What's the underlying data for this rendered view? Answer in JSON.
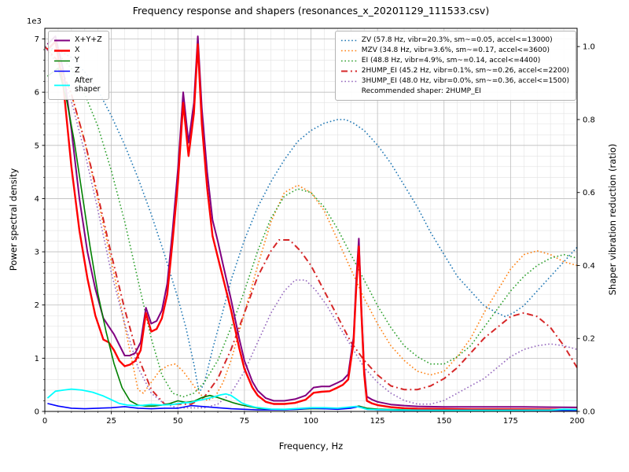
{
  "title": "Frequency response and shapers (resonances_x_20201129_111533.csv)",
  "axes": {
    "xlabel": "Frequency, Hz",
    "ylabel_left": "Power spectral density",
    "ylabel_right": "Shaper vibration reduction (ratio)",
    "offset_text": "1e3"
  },
  "legend_psd": {
    "entries": [
      {
        "label": "X+Y+Z",
        "color": "#800080",
        "style": "solid",
        "width": 2
      },
      {
        "label": "X",
        "color": "#ff0000",
        "style": "solid",
        "width": 2.4
      },
      {
        "label": "Y",
        "color": "#008000",
        "style": "solid",
        "width": 1.6
      },
      {
        "label": "Z",
        "color": "#0000ff",
        "style": "solid",
        "width": 1.6
      },
      {
        "label": "After\nshaper",
        "color": "#00ffff",
        "style": "solid",
        "width": 1.8
      }
    ]
  },
  "legend_shapers": {
    "entries": [
      {
        "label": "ZV (57.8 Hz, vibr=20.3%, sm~=0.05, accel<=13000)",
        "color": "#1f77b4",
        "style": "dotted",
        "width": 1.6
      },
      {
        "label": "MZV (34.8 Hz, vibr=3.6%, sm~=0.17, accel<=3600)",
        "color": "#ff7f0e",
        "style": "dotted",
        "width": 1.6
      },
      {
        "label": "EI (48.8 Hz, vibr=4.9%, sm~=0.14, accel<=4400)",
        "color": "#2ca02c",
        "style": "dotted",
        "width": 1.6
      },
      {
        "label": "2HUMP_EI (45.2 Hz, vibr=0.1%, sm~=0.26, accel<=2200)",
        "color": "#d62728",
        "style": "dashdot",
        "width": 2
      },
      {
        "label": "3HUMP_EI (48.0 Hz, vibr=0.0%, sm~=0.36, accel<=1500)",
        "color": "#9467bd",
        "style": "dotted",
        "width": 1.6
      }
    ],
    "note": "Recommended shaper: 2HUMP_EI"
  },
  "chart_data": {
    "type": "line",
    "xlim": [
      0,
      200
    ],
    "ylim_left": [
      0,
      7200
    ],
    "ylim_right": [
      0,
      1.05
    ],
    "xticks": [
      0,
      25,
      50,
      75,
      100,
      125,
      150,
      175,
      200
    ],
    "yticks_left": {
      "values": [
        0,
        1000,
        2000,
        3000,
        4000,
        5000,
        6000,
        7000
      ],
      "labels": [
        "0",
        "1",
        "2",
        "3",
        "4",
        "5",
        "6",
        "7"
      ]
    },
    "yticks_right": {
      "values": [
        0,
        0.2,
        0.4,
        0.6,
        0.8,
        1.0
      ],
      "labels": [
        "0.0",
        "0.2",
        "0.4",
        "0.6",
        "0.8",
        "1.0"
      ]
    },
    "grid": "major+minor",
    "minor_x_step": 5,
    "minor_y_step": 200,
    "series": [
      {
        "name": "ZV",
        "axis": "right",
        "color": "#1f77b4",
        "style": "dotted",
        "width": 1.6,
        "x": [
          0,
          5,
          10,
          15,
          20,
          25,
          30,
          35,
          40,
          45,
          50,
          53,
          56,
          58,
          60,
          63,
          66,
          70,
          75,
          80,
          85,
          90,
          95,
          100,
          105,
          110,
          113,
          116,
          120,
          125,
          130,
          135,
          140,
          145,
          150,
          155,
          160,
          165,
          170,
          173,
          176,
          180,
          185,
          190,
          195,
          200
        ],
        "y": [
          1.0,
          0.99,
          0.97,
          0.93,
          0.88,
          0.81,
          0.73,
          0.64,
          0.54,
          0.43,
          0.31,
          0.23,
          0.13,
          0.05,
          0.08,
          0.17,
          0.25,
          0.36,
          0.47,
          0.56,
          0.63,
          0.69,
          0.74,
          0.77,
          0.79,
          0.8,
          0.8,
          0.79,
          0.77,
          0.73,
          0.68,
          0.62,
          0.56,
          0.49,
          0.43,
          0.37,
          0.33,
          0.29,
          0.27,
          0.26,
          0.27,
          0.29,
          0.33,
          0.37,
          0.41,
          0.45
        ]
      },
      {
        "name": "MZV",
        "axis": "right",
        "color": "#ff7f0e",
        "style": "dotted",
        "width": 1.6,
        "x": [
          0,
          5,
          10,
          15,
          20,
          25,
          28,
          31,
          33,
          35,
          37,
          40,
          43,
          46,
          49,
          52,
          55,
          58,
          61,
          64,
          67,
          70,
          75,
          80,
          85,
          90,
          95,
          100,
          105,
          110,
          115,
          120,
          125,
          130,
          135,
          140,
          145,
          150,
          155,
          160,
          165,
          170,
          175,
          180,
          185,
          190,
          195,
          200
        ],
        "y": [
          1.0,
          0.96,
          0.87,
          0.74,
          0.58,
          0.41,
          0.31,
          0.2,
          0.13,
          0.06,
          0.05,
          0.08,
          0.11,
          0.125,
          0.13,
          0.11,
          0.08,
          0.05,
          0.03,
          0.04,
          0.08,
          0.14,
          0.27,
          0.4,
          0.52,
          0.6,
          0.62,
          0.6,
          0.55,
          0.47,
          0.39,
          0.31,
          0.24,
          0.18,
          0.14,
          0.11,
          0.1,
          0.11,
          0.15,
          0.2,
          0.27,
          0.33,
          0.39,
          0.43,
          0.44,
          0.43,
          0.41,
          0.4
        ]
      },
      {
        "name": "EI",
        "axis": "right",
        "color": "#2ca02c",
        "style": "dotted",
        "width": 1.6,
        "x": [
          0,
          5,
          10,
          15,
          20,
          25,
          30,
          35,
          40,
          44,
          48,
          52,
          56,
          60,
          65,
          70,
          75,
          80,
          85,
          90,
          95,
          100,
          105,
          110,
          115,
          120,
          125,
          130,
          135,
          140,
          145,
          150,
          155,
          160,
          165,
          170,
          175,
          180,
          185,
          190,
          195,
          200
        ],
        "y": [
          1.0,
          0.98,
          0.94,
          0.87,
          0.78,
          0.66,
          0.52,
          0.36,
          0.2,
          0.1,
          0.05,
          0.04,
          0.05,
          0.08,
          0.14,
          0.23,
          0.33,
          0.44,
          0.53,
          0.59,
          0.61,
          0.6,
          0.56,
          0.5,
          0.43,
          0.36,
          0.29,
          0.23,
          0.18,
          0.15,
          0.13,
          0.13,
          0.15,
          0.18,
          0.23,
          0.28,
          0.33,
          0.37,
          0.4,
          0.42,
          0.43,
          0.42
        ]
      },
      {
        "name": "2HUMP_EI",
        "axis": "right",
        "color": "#d62728",
        "style": "dashdot",
        "width": 2,
        "x": [
          0,
          5,
          10,
          15,
          20,
          25,
          30,
          35,
          40,
          45,
          50,
          55,
          60,
          65,
          70,
          75,
          80,
          85,
          88,
          92,
          96,
          100,
          105,
          110,
          115,
          120,
          125,
          130,
          135,
          140,
          145,
          150,
          155,
          160,
          165,
          170,
          175,
          180,
          185,
          190,
          195,
          200
        ],
        "y": [
          1.0,
          0.96,
          0.87,
          0.74,
          0.59,
          0.43,
          0.28,
          0.15,
          0.06,
          0.02,
          0.02,
          0.02,
          0.04,
          0.09,
          0.17,
          0.27,
          0.37,
          0.44,
          0.47,
          0.47,
          0.44,
          0.4,
          0.33,
          0.26,
          0.19,
          0.14,
          0.1,
          0.07,
          0.06,
          0.06,
          0.07,
          0.09,
          0.12,
          0.16,
          0.2,
          0.23,
          0.26,
          0.27,
          0.26,
          0.23,
          0.18,
          0.12
        ]
      },
      {
        "name": "3HUMP_EI",
        "axis": "right",
        "color": "#9467bd",
        "style": "dotted",
        "width": 1.6,
        "x": [
          0,
          5,
          10,
          15,
          20,
          25,
          30,
          35,
          40,
          45,
          50,
          55,
          60,
          65,
          70,
          75,
          80,
          85,
          90,
          94,
          98,
          102,
          106,
          110,
          115,
          120,
          125,
          130,
          135,
          140,
          145,
          150,
          155,
          160,
          165,
          170,
          175,
          180,
          185,
          190,
          195,
          200
        ],
        "y": [
          1.0,
          0.95,
          0.85,
          0.71,
          0.55,
          0.38,
          0.24,
          0.12,
          0.05,
          0.02,
          0.01,
          0.01,
          0.01,
          0.02,
          0.05,
          0.11,
          0.19,
          0.27,
          0.33,
          0.36,
          0.36,
          0.33,
          0.29,
          0.24,
          0.18,
          0.12,
          0.08,
          0.05,
          0.03,
          0.02,
          0.02,
          0.03,
          0.05,
          0.07,
          0.09,
          0.12,
          0.15,
          0.17,
          0.18,
          0.185,
          0.18,
          0.17
        ]
      },
      {
        "name": "X+Y+Z",
        "axis": "left",
        "color": "#800080",
        "style": "solid",
        "width": 2,
        "x": [
          1,
          4,
          7,
          10,
          13,
          16,
          19,
          22,
          24,
          26,
          28,
          30,
          32,
          34,
          36,
          38,
          40,
          42,
          44,
          46,
          48,
          50,
          52,
          54,
          56,
          57.5,
          59,
          61,
          63,
          65,
          67,
          70,
          73,
          75,
          78,
          80,
          83,
          86,
          90,
          94,
          98,
          101,
          104,
          107,
          110,
          112,
          114,
          116,
          117,
          118,
          119,
          120,
          121,
          123,
          125,
          130,
          135,
          140,
          150,
          160,
          170,
          180,
          190,
          200
        ],
        "y": [
          6900,
          7050,
          6400,
          5300,
          4000,
          3000,
          2300,
          1750,
          1600,
          1450,
          1250,
          1050,
          1050,
          1100,
          1300,
          1950,
          1650,
          1700,
          1900,
          2400,
          3400,
          4550,
          6000,
          5050,
          5800,
          7050,
          5700,
          4500,
          3600,
          3200,
          2750,
          2100,
          1380,
          950,
          560,
          390,
          250,
          200,
          200,
          230,
          300,
          450,
          470,
          470,
          540,
          590,
          700,
          1400,
          2450,
          3250,
          1900,
          800,
          280,
          220,
          180,
          130,
          110,
          95,
          85,
          85,
          85,
          85,
          80,
          75
        ]
      },
      {
        "name": "X",
        "axis": "left",
        "color": "#ff0000",
        "style": "solid",
        "width": 2.4,
        "x": [
          1,
          4,
          7,
          10,
          13,
          16,
          19,
          22,
          24,
          26,
          28,
          30,
          32,
          34,
          36,
          38,
          40,
          42,
          44,
          46,
          48,
          50,
          52,
          54,
          56,
          57.5,
          59,
          61,
          63,
          65,
          67,
          70,
          73,
          75,
          78,
          80,
          83,
          86,
          90,
          94,
          98,
          101,
          104,
          107,
          110,
          112,
          114,
          116,
          117,
          118,
          119,
          120,
          121,
          123,
          125,
          130,
          135,
          140,
          150,
          160,
          170,
          180,
          190,
          200
        ],
        "y": [
          6800,
          6950,
          6100,
          4600,
          3400,
          2500,
          1800,
          1350,
          1300,
          1150,
          950,
          850,
          880,
          950,
          1150,
          1850,
          1500,
          1550,
          1750,
          2200,
          3200,
          4300,
          5800,
          4800,
          5600,
          6900,
          5400,
          4200,
          3300,
          2900,
          2500,
          1900,
          1200,
          800,
          450,
          300,
          180,
          140,
          140,
          160,
          220,
          350,
          370,
          380,
          450,
          500,
          600,
          1300,
          2300,
          3100,
          1800,
          700,
          200,
          150,
          120,
          80,
          60,
          50,
          45,
          40,
          40,
          40,
          35,
          30
        ]
      },
      {
        "name": "Y",
        "axis": "left",
        "color": "#008000",
        "style": "solid",
        "width": 1.6,
        "x": [
          1,
          5,
          8,
          11,
          14,
          17,
          20,
          23,
          26,
          29,
          32,
          35,
          38,
          41,
          44,
          47,
          50,
          53,
          56,
          59,
          62,
          65,
          68,
          71,
          74,
          77,
          80,
          85,
          90,
          95,
          100,
          105,
          110,
          115,
          118,
          121,
          125,
          130,
          140,
          150,
          160,
          170,
          180,
          190,
          200
        ],
        "y": [
          6300,
          6450,
          5900,
          5100,
          4100,
          3100,
          2200,
          1500,
          900,
          450,
          200,
          120,
          100,
          100,
          120,
          150,
          200,
          170,
          190,
          260,
          300,
          260,
          210,
          160,
          120,
          90,
          60,
          35,
          30,
          40,
          50,
          50,
          50,
          70,
          100,
          60,
          45,
          35,
          25,
          25,
          25,
          25,
          25,
          25,
          25
        ]
      },
      {
        "name": "Z",
        "axis": "left",
        "color": "#0000ff",
        "style": "solid",
        "width": 1.6,
        "x": [
          1,
          5,
          10,
          15,
          20,
          25,
          30,
          35,
          40,
          45,
          50,
          55,
          60,
          65,
          70,
          75,
          80,
          85,
          90,
          95,
          100,
          105,
          110,
          115,
          118,
          121,
          125,
          130,
          140,
          150,
          160,
          170,
          180,
          190,
          200
        ],
        "y": [
          150,
          100,
          60,
          50,
          60,
          70,
          90,
          60,
          50,
          60,
          60,
          110,
          90,
          70,
          50,
          40,
          30,
          30,
          30,
          40,
          60,
          50,
          40,
          60,
          90,
          40,
          30,
          25,
          20,
          20,
          20,
          20,
          20,
          20,
          20
        ]
      },
      {
        "name": "After shaper",
        "axis": "left",
        "color": "#00ffff",
        "style": "solid",
        "width": 1.8,
        "x": [
          1,
          4,
          7,
          10,
          14,
          18,
          22,
          25,
          28,
          31,
          34,
          37,
          40,
          44,
          48,
          52,
          55,
          58,
          61,
          64,
          66,
          68,
          70,
          72,
          74,
          76,
          79,
          82,
          85,
          90,
          95,
          100,
          105,
          110,
          114,
          117,
          119,
          121,
          124,
          128,
          132,
          140,
          150,
          160,
          170,
          180,
          190,
          195,
          200
        ],
        "y": [
          250,
          380,
          400,
          420,
          400,
          360,
          290,
          220,
          150,
          120,
          110,
          115,
          130,
          120,
          130,
          160,
          170,
          210,
          240,
          280,
          310,
          330,
          300,
          230,
          160,
          120,
          80,
          60,
          45,
          40,
          55,
          70,
          70,
          60,
          80,
          95,
          70,
          40,
          35,
          30,
          25,
          22,
          20,
          20,
          20,
          22,
          25,
          40,
          35
        ]
      }
    ]
  }
}
